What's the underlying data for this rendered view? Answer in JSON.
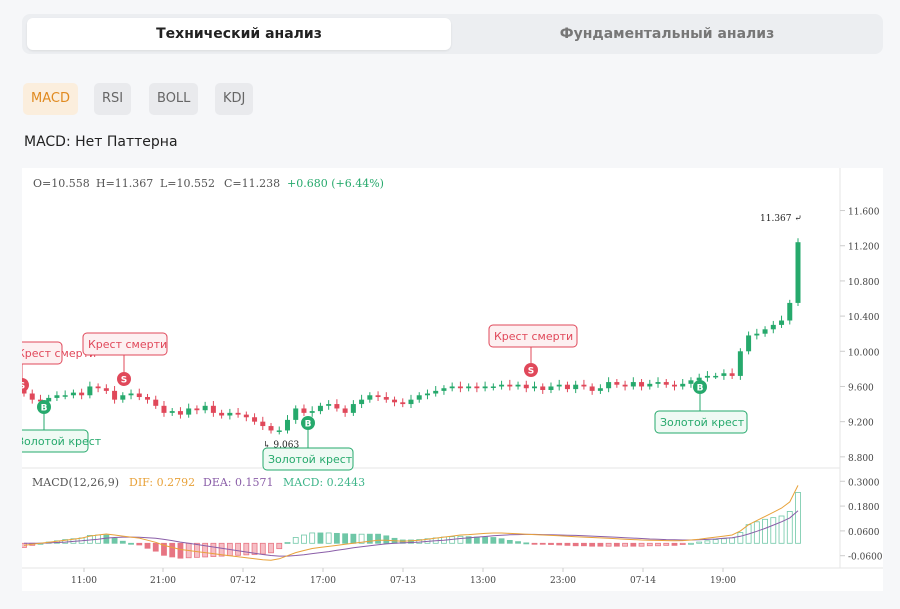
{
  "tabs": [
    {
      "label": "Технический анализ",
      "active": true
    },
    {
      "label": "Фундаментальный анализ",
      "active": false
    }
  ],
  "indicators": [
    {
      "label": "MACD",
      "active": true
    },
    {
      "label": "RSI",
      "active": false
    },
    {
      "label": "BOLL",
      "active": false
    },
    {
      "label": "KDJ",
      "active": false
    }
  ],
  "pattern_text": "MACD: Нет Паттерна",
  "colors": {
    "up": "#26a96c",
    "down": "#e0485a",
    "dif": "#e8a23a",
    "dea": "#8a5ea8",
    "macd": "#3fb58a"
  },
  "chart_data": {
    "type": "candlestick",
    "ohlc_legend": {
      "open": "O=10.558",
      "high": "H=11.367",
      "low": "L=10.552",
      "close": "C=11.238",
      "change": "+0.680 (+6.44%)"
    },
    "price_axis": {
      "ticks": [
        "11.600",
        "11.200",
        "10.800",
        "10.400",
        "10.000",
        "9.600",
        "9.200",
        "8.800"
      ],
      "range": [
        8.73,
        11.97
      ]
    },
    "time_axis": {
      "ticks": [
        "11:00",
        "21:00",
        "07-12",
        "17:00",
        "07-13",
        "13:00",
        "23:00",
        "07-14",
        "19:00"
      ]
    },
    "closes": [
      9.52,
      9.45,
      9.43,
      9.47,
      9.5,
      9.5,
      9.53,
      9.5,
      9.6,
      9.58,
      9.55,
      9.45,
      9.5,
      9.52,
      9.48,
      9.45,
      9.38,
      9.3,
      9.32,
      9.28,
      9.35,
      9.33,
      9.38,
      9.3,
      9.27,
      9.3,
      9.28,
      9.25,
      9.2,
      9.15,
      9.1,
      9.1,
      9.22,
      9.35,
      9.3,
      9.32,
      9.38,
      9.4,
      9.35,
      9.3,
      9.4,
      9.45,
      9.5,
      9.48,
      9.45,
      9.42,
      9.4,
      9.45,
      9.5,
      9.52,
      9.55,
      9.58,
      9.6,
      9.58,
      9.6,
      9.58,
      9.6,
      9.6,
      9.62,
      9.6,
      9.62,
      9.58,
      9.6,
      9.56,
      9.6,
      9.62,
      9.57,
      9.62,
      9.6,
      9.55,
      9.58,
      9.65,
      9.62,
      9.6,
      9.65,
      9.6,
      9.63,
      9.65,
      9.62,
      9.6,
      9.63,
      9.67,
      9.7,
      9.72,
      9.72,
      9.75,
      9.72,
      10.0,
      10.18,
      10.2,
      10.25,
      10.3,
      10.35,
      10.55,
      11.24
    ],
    "high_marker": {
      "label": "11.367",
      "value": 11.367,
      "index": 94
    },
    "low_marker": {
      "label": "9.063",
      "value": 9.063,
      "index": 30
    },
    "signals": [
      {
        "type": "S",
        "label": "Крест смерти",
        "index": 0
      },
      {
        "type": "B",
        "label": "Золотой крест",
        "index": 2
      },
      {
        "type": "S",
        "label": "Крест смерти",
        "index": 12
      },
      {
        "type": "B",
        "label": "Золотой крест",
        "index": 33
      },
      {
        "type": "S",
        "label": "Крест смерти",
        "index": 63
      },
      {
        "type": "B",
        "label": "Золотой крест",
        "index": 81
      }
    ],
    "macd": {
      "legend": {
        "title": "MACD(12,26,9)",
        "dif": "DIF: 0.2792",
        "dea": "DEA: 0.1571",
        "macd": "MACD: 0.2443"
      },
      "axis": {
        "ticks": [
          "0.3000",
          "0.1800",
          "0.0600",
          "-0.0600"
        ],
        "range": [
          -0.105,
          0.34
        ]
      },
      "dif": [
        -0.01,
        -0.005,
        0.0,
        0.005,
        0.01,
        0.015,
        0.02,
        0.025,
        0.035,
        0.04,
        0.045,
        0.04,
        0.035,
        0.03,
        0.025,
        0.015,
        0.005,
        -0.01,
        -0.02,
        -0.03,
        -0.035,
        -0.04,
        -0.045,
        -0.05,
        -0.055,
        -0.06,
        -0.065,
        -0.07,
        -0.075,
        -0.08,
        -0.082,
        -0.075,
        -0.06,
        -0.045,
        -0.035,
        -0.025,
        -0.02,
        -0.015,
        -0.01,
        -0.005,
        0.0,
        0.005,
        0.01,
        0.015,
        0.015,
        0.012,
        0.01,
        0.012,
        0.015,
        0.02,
        0.025,
        0.03,
        0.035,
        0.04,
        0.042,
        0.045,
        0.048,
        0.05,
        0.05,
        0.048,
        0.046,
        0.044,
        0.042,
        0.04,
        0.038,
        0.036,
        0.034,
        0.032,
        0.03,
        0.028,
        0.026,
        0.024,
        0.022,
        0.02,
        0.018,
        0.016,
        0.015,
        0.014,
        0.013,
        0.012,
        0.013,
        0.016,
        0.02,
        0.025,
        0.03,
        0.035,
        0.04,
        0.06,
        0.09,
        0.11,
        0.13,
        0.15,
        0.17,
        0.2,
        0.28
      ],
      "dea": [
        0.0,
        0.0,
        0.0,
        0.002,
        0.004,
        0.006,
        0.009,
        0.012,
        0.016,
        0.02,
        0.025,
        0.028,
        0.03,
        0.03,
        0.029,
        0.027,
        0.024,
        0.019,
        0.013,
        0.006,
        0.0,
        -0.006,
        -0.012,
        -0.018,
        -0.024,
        -0.03,
        -0.036,
        -0.042,
        -0.048,
        -0.054,
        -0.059,
        -0.062,
        -0.062,
        -0.059,
        -0.055,
        -0.05,
        -0.045,
        -0.04,
        -0.034,
        -0.028,
        -0.022,
        -0.017,
        -0.012,
        -0.007,
        -0.003,
        0.0,
        0.002,
        0.004,
        0.006,
        0.009,
        0.012,
        0.015,
        0.019,
        0.023,
        0.026,
        0.03,
        0.033,
        0.036,
        0.039,
        0.041,
        0.042,
        0.043,
        0.043,
        0.042,
        0.041,
        0.04,
        0.039,
        0.038,
        0.036,
        0.035,
        0.033,
        0.031,
        0.029,
        0.027,
        0.025,
        0.023,
        0.021,
        0.02,
        0.018,
        0.017,
        0.016,
        0.016,
        0.017,
        0.019,
        0.021,
        0.024,
        0.027,
        0.034,
        0.045,
        0.058,
        0.072,
        0.088,
        0.104,
        0.123,
        0.157
      ]
    }
  }
}
